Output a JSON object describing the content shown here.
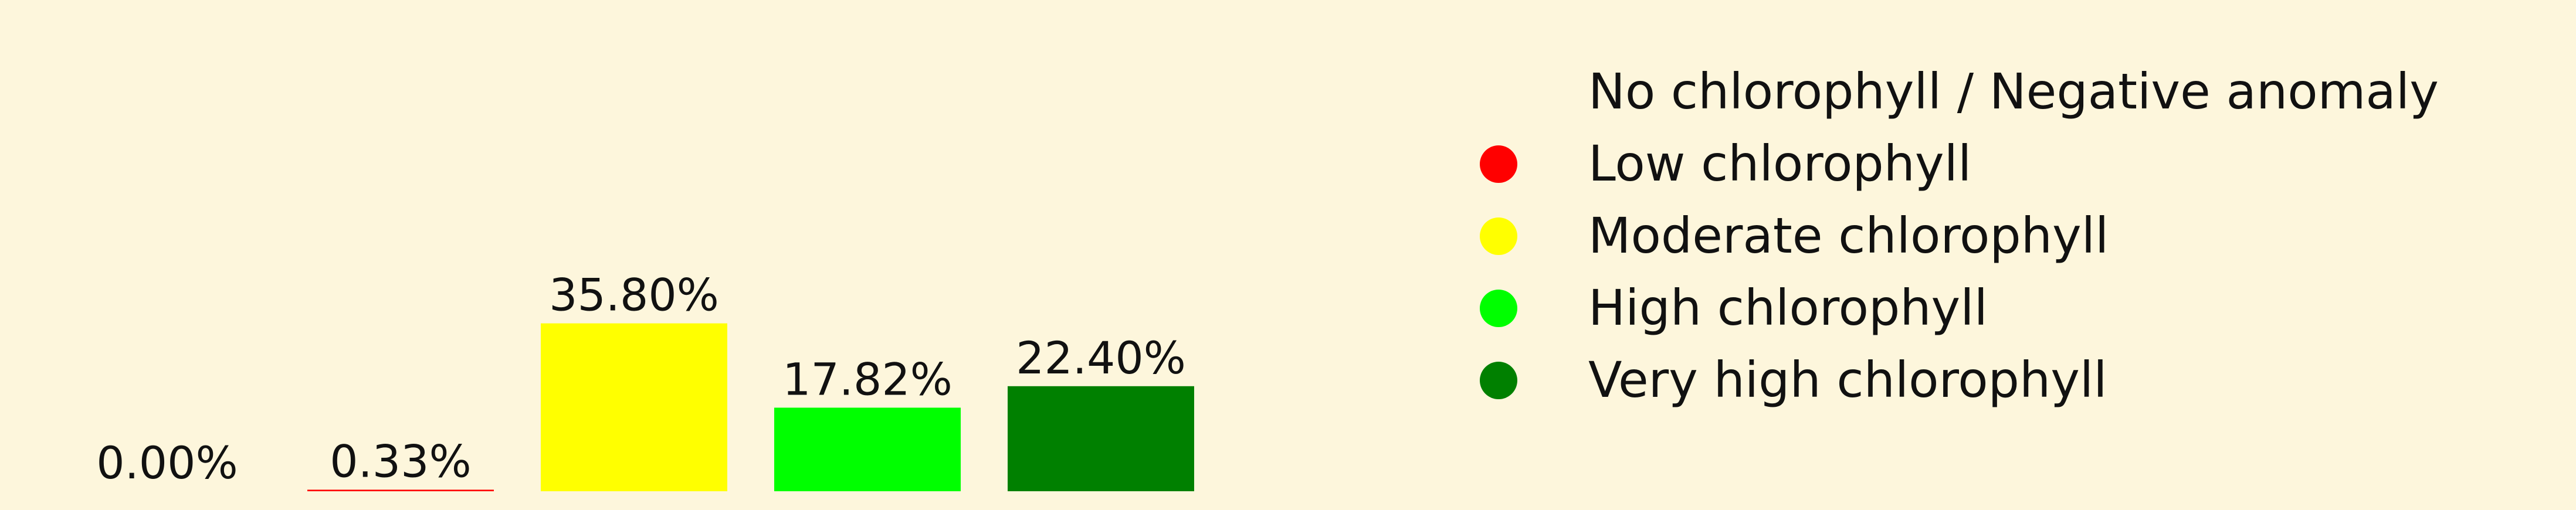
{
  "chart_data": {
    "type": "bar",
    "categories": [
      "No chlorophyll / Negative anomaly",
      "Low chlorophyll",
      "Moderate chlorophyll",
      "High chlorophyll",
      "Very high chlorophyll"
    ],
    "values": [
      0.0,
      0.33,
      35.8,
      17.82,
      22.4
    ],
    "value_labels": [
      "0.00%",
      "0.33%",
      "35.80%",
      "17.82%",
      "22.40%"
    ],
    "unit": "%",
    "colors": [
      "#fdf6dc",
      "#ff0000",
      "#ffff00",
      "#00ff00",
      "#008000"
    ],
    "title": "",
    "xlabel": "",
    "ylabel": "",
    "ylim": [
      0,
      36
    ],
    "grid": false,
    "axes_visible": false,
    "legend": {
      "placement": "right",
      "entries": [
        {
          "label": "No chlorophyll / Negative anomaly",
          "color": "#fdf6dc"
        },
        {
          "label": "Low chlorophyll",
          "color": "#ff0000"
        },
        {
          "label": "Moderate chlorophyll",
          "color": "#ffff00"
        },
        {
          "label": "High chlorophyll",
          "color": "#00ff00"
        },
        {
          "label": "Very high chlorophyll",
          "color": "#008000"
        }
      ]
    }
  }
}
